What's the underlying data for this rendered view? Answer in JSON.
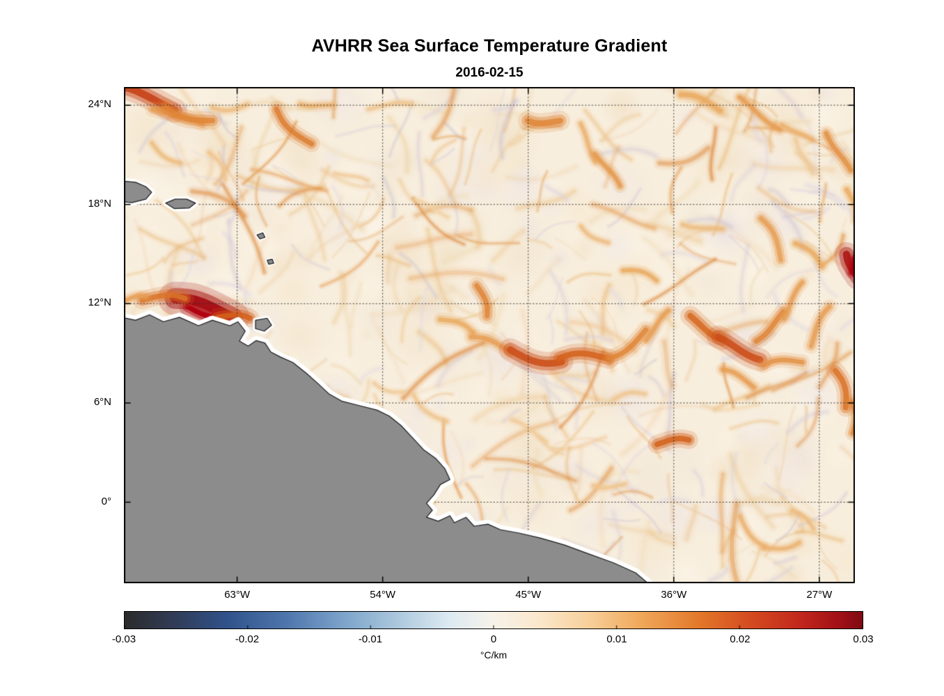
{
  "figure": {
    "title": "AVHRR Sea Surface Temperature Gradient",
    "subtitle": "2016-02-15"
  },
  "chart_data": {
    "type": "heatmap",
    "title": "AVHRR Sea Surface Temperature Gradient",
    "subtitle": "2016-02-15",
    "x_axis": {
      "ticks": [
        "63°W",
        "54°W",
        "45°W",
        "36°W",
        "27°W"
      ],
      "tick_values": [
        -63,
        -54,
        -45,
        -36,
        -27
      ],
      "range": [
        -70,
        -24.8
      ]
    },
    "y_axis": {
      "ticks": [
        "0°",
        "6°N",
        "12°N",
        "18°N",
        "24°N"
      ],
      "tick_values": [
        0,
        6,
        12,
        18,
        24
      ],
      "range": [
        -4.9,
        25.1
      ]
    },
    "grid": "dotted",
    "colorbar": {
      "label": "°C/km",
      "tick_labels": [
        "-0.03",
        "-0.02",
        "-0.01",
        "0",
        "0.01",
        "0.02",
        "0.03"
      ],
      "tick_values": [
        -0.03,
        -0.02,
        -0.01,
        0,
        0.01,
        0.02,
        0.03
      ],
      "range": [
        -0.03,
        0.03
      ],
      "stops": [
        [
          0.0,
          "#2b2b2b"
        ],
        [
          0.06,
          "#303a52"
        ],
        [
          0.14,
          "#31538c"
        ],
        [
          0.22,
          "#4f77ad"
        ],
        [
          0.3,
          "#7fa6cc"
        ],
        [
          0.38,
          "#b3cde0"
        ],
        [
          0.44,
          "#ddeaf2"
        ],
        [
          0.5,
          "#f7f3ea"
        ],
        [
          0.56,
          "#fbe8cd"
        ],
        [
          0.63,
          "#f8cf9a"
        ],
        [
          0.7,
          "#f0a85a"
        ],
        [
          0.78,
          "#e3772a"
        ],
        [
          0.85,
          "#d44a20"
        ],
        [
          0.92,
          "#c0251c"
        ],
        [
          0.97,
          "#a01016"
        ],
        [
          1.0,
          "#7f0b12"
        ]
      ]
    },
    "ocean_base": "#f8eedd",
    "land": {
      "color": "#8c8c8c",
      "outline": "#1a1a1a",
      "coast_halo": "#ffffff",
      "polygons": [
        [
          [
            -0.02,
            0.459
          ],
          [
            0.016,
            0.47
          ],
          [
            0.035,
            0.459
          ],
          [
            0.054,
            0.473
          ],
          [
            0.076,
            0.464
          ],
          [
            0.102,
            0.481
          ],
          [
            0.121,
            0.47
          ],
          [
            0.145,
            0.481
          ],
          [
            0.156,
            0.473
          ],
          [
            0.166,
            0.492
          ],
          [
            0.158,
            0.512
          ],
          [
            0.17,
            0.522
          ],
          [
            0.181,
            0.511
          ],
          [
            0.193,
            0.516
          ],
          [
            0.201,
            0.534
          ],
          [
            0.214,
            0.544
          ],
          [
            0.231,
            0.555
          ],
          [
            0.249,
            0.576
          ],
          [
            0.265,
            0.597
          ],
          [
            0.281,
            0.619
          ],
          [
            0.298,
            0.633
          ],
          [
            0.322,
            0.642
          ],
          [
            0.346,
            0.651
          ],
          [
            0.363,
            0.663
          ],
          [
            0.379,
            0.682
          ],
          [
            0.395,
            0.707
          ],
          [
            0.41,
            0.731
          ],
          [
            0.427,
            0.749
          ],
          [
            0.439,
            0.769
          ],
          [
            0.446,
            0.791
          ],
          [
            0.433,
            0.801
          ],
          [
            0.424,
            0.822
          ],
          [
            0.414,
            0.839
          ],
          [
            0.422,
            0.853
          ],
          [
            0.414,
            0.867
          ],
          [
            0.43,
            0.875
          ],
          [
            0.446,
            0.864
          ],
          [
            0.452,
            0.878
          ],
          [
            0.468,
            0.867
          ],
          [
            0.479,
            0.885
          ],
          [
            0.498,
            0.881
          ],
          [
            0.515,
            0.892
          ],
          [
            0.541,
            0.899
          ],
          [
            0.57,
            0.909
          ],
          [
            0.603,
            0.923
          ],
          [
            0.636,
            0.941
          ],
          [
            0.67,
            0.959
          ],
          [
            0.7,
            0.979
          ],
          [
            0.725,
            1.01
          ],
          [
            -0.02,
            1.01
          ]
        ],
        [
          [
            -0.02,
            0.187
          ],
          [
            0.016,
            0.192
          ],
          [
            0.03,
            0.201
          ],
          [
            0.038,
            0.212
          ],
          [
            0.03,
            0.226
          ],
          [
            0.011,
            0.233
          ],
          [
            -0.02,
            0.229
          ]
        ],
        [
          [
            0.057,
            0.234
          ],
          [
            0.07,
            0.226
          ],
          [
            0.086,
            0.226
          ],
          [
            0.098,
            0.234
          ],
          [
            0.089,
            0.244
          ],
          [
            0.069,
            0.245
          ]
        ],
        [
          [
            0.18,
            0.47
          ],
          [
            0.196,
            0.466
          ],
          [
            0.202,
            0.48
          ],
          [
            0.192,
            0.492
          ],
          [
            0.18,
            0.487
          ]
        ],
        [
          [
            0.182,
            0.298
          ],
          [
            0.19,
            0.294
          ],
          [
            0.193,
            0.303
          ],
          [
            0.186,
            0.306
          ]
        ],
        [
          [
            0.196,
            0.349
          ],
          [
            0.203,
            0.347
          ],
          [
            0.205,
            0.355
          ],
          [
            0.198,
            0.357
          ]
        ]
      ]
    },
    "intensity_ramp": [
      [
        0.2,
        "#f4ddba"
      ],
      [
        0.4,
        "#efc48c"
      ],
      [
        0.55,
        "#e9a85e"
      ],
      [
        0.7,
        "#df8436"
      ],
      [
        0.8,
        "#d4621c"
      ],
      [
        0.9,
        "#c33a17"
      ],
      [
        1.0,
        "#a50f15"
      ]
    ],
    "features_format": "[x_frac, y_frac, length_px, angle_deg, width_px, intensity_0_1]",
    "features": [
      [
        0.026,
        0.024,
        95,
        8,
        16,
        0.88
      ],
      [
        0.073,
        0.06,
        70,
        35,
        10,
        0.6
      ],
      [
        0.09,
        0.05,
        70,
        25,
        12,
        0.7
      ],
      [
        0.145,
        0.035,
        50,
        0,
        8,
        0.45
      ],
      [
        0.235,
        0.077,
        70,
        55,
        11,
        0.72
      ],
      [
        0.264,
        0.035,
        45,
        20,
        8,
        0.5
      ],
      [
        0.364,
        0.042,
        60,
        10,
        7,
        0.4
      ],
      [
        0.575,
        0.066,
        45,
        15,
        13,
        0.7
      ],
      [
        0.635,
        0.112,
        55,
        50,
        8,
        0.5
      ],
      [
        0.661,
        0.168,
        55,
        70,
        9,
        0.62
      ],
      [
        0.788,
        0.035,
        60,
        12,
        10,
        0.55
      ],
      [
        0.87,
        0.052,
        70,
        20,
        9,
        0.6
      ],
      [
        0.921,
        0.091,
        45,
        45,
        7,
        0.5
      ],
      [
        0.978,
        0.13,
        60,
        75,
        10,
        0.65
      ],
      [
        0.994,
        0.238,
        45,
        85,
        9,
        0.55
      ],
      [
        0.109,
        0.449,
        85,
        5,
        22,
        1.0
      ],
      [
        0.054,
        0.431,
        60,
        10,
        12,
        0.75
      ],
      [
        0.15,
        0.467,
        45,
        15,
        12,
        0.8
      ],
      [
        0.016,
        0.428,
        30,
        0,
        8,
        0.6
      ],
      [
        0.488,
        0.431,
        45,
        80,
        11,
        0.7
      ],
      [
        0.454,
        0.484,
        50,
        30,
        9,
        0.55
      ],
      [
        0.502,
        0.523,
        60,
        10,
        10,
        0.6
      ],
      [
        0.564,
        0.537,
        75,
        5,
        15,
        0.85
      ],
      [
        0.63,
        0.551,
        70,
        -10,
        13,
        0.8
      ],
      [
        0.688,
        0.515,
        65,
        -25,
        11,
        0.7
      ],
      [
        0.73,
        0.481,
        50,
        -35,
        9,
        0.6
      ],
      [
        0.797,
        0.484,
        55,
        20,
        13,
        0.78
      ],
      [
        0.842,
        0.526,
        65,
        10,
        15,
        0.85
      ],
      [
        0.883,
        0.481,
        55,
        -30,
        11,
        0.7
      ],
      [
        0.916,
        0.431,
        55,
        -45,
        9,
        0.6
      ],
      [
        0.84,
        0.589,
        50,
        15,
        9,
        0.6
      ],
      [
        0.902,
        0.561,
        55,
        -15,
        10,
        0.65
      ],
      [
        0.954,
        0.484,
        60,
        -50,
        10,
        0.6
      ],
      [
        0.997,
        0.36,
        35,
        80,
        16,
        0.97
      ],
      [
        0.978,
        0.61,
        55,
        70,
        12,
        0.75
      ],
      [
        0.994,
        0.666,
        45,
        85,
        10,
        0.7
      ],
      [
        0.751,
        0.718,
        45,
        5,
        12,
        0.8
      ],
      [
        0.664,
        0.799,
        45,
        10,
        7,
        0.4
      ],
      [
        0.861,
        0.893,
        55,
        40,
        8,
        0.5
      ],
      [
        0.899,
        0.921,
        50,
        -20,
        8,
        0.5
      ],
      [
        0.928,
        0.874,
        40,
        30,
        7,
        0.45
      ],
      [
        0.421,
        0.645,
        60,
        45,
        7,
        0.4
      ],
      [
        0.364,
        0.603,
        45,
        20,
        6,
        0.35
      ],
      [
        0.554,
        0.694,
        55,
        15,
        6,
        0.35
      ],
      [
        0.692,
        0.627,
        45,
        -10,
        7,
        0.4
      ],
      [
        0.792,
        0.281,
        55,
        25,
        8,
        0.45
      ],
      [
        0.883,
        0.309,
        65,
        55,
        10,
        0.6
      ],
      [
        0.935,
        0.341,
        50,
        45,
        9,
        0.55
      ],
      [
        0.059,
        0.13,
        50,
        30,
        7,
        0.45
      ],
      [
        0.126,
        0.161,
        45,
        60,
        6,
        0.4
      ],
      [
        0.421,
        0.245,
        50,
        10,
        6,
        0.3
      ],
      [
        0.311,
        0.182,
        45,
        30,
        6,
        0.35
      ],
      [
        0.705,
        0.383,
        50,
        20,
        8,
        0.55
      ],
      [
        0.645,
        0.295,
        45,
        40,
        7,
        0.45
      ]
    ]
  }
}
